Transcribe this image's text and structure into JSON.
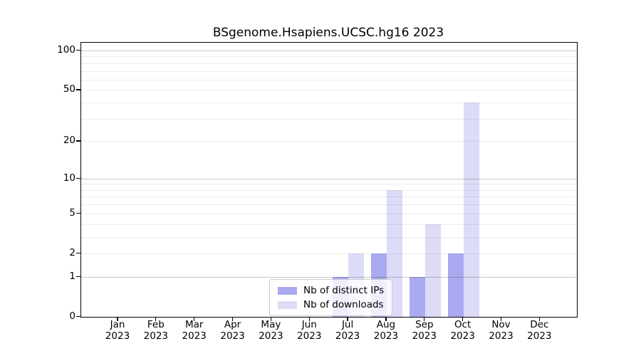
{
  "title": "BSgenome.Hsapiens.UCSC.hg16 2023",
  "legend": {
    "items": [
      {
        "label": "Nb of distinct IPs",
        "color": "#aaaaf0"
      },
      {
        "label": "Nb of downloads",
        "color": "#dcdcf8"
      }
    ]
  },
  "colors": {
    "distinct_ips_bar": "#aaaaf0",
    "downloads_bar": "#dcdcf8",
    "axis_frame": "#000000",
    "legend_border": "#cccccc"
  },
  "chart_data": {
    "type": "bar",
    "title": "BSgenome.Hsapiens.UCSC.hg16 2023",
    "categories": [
      "Jan 2023",
      "Feb 2023",
      "Mar 2023",
      "Apr 2023",
      "May 2023",
      "Jun 2023",
      "Jul 2023",
      "Aug 2023",
      "Sep 2023",
      "Oct 2023",
      "Nov 2023",
      "Dec 2023"
    ],
    "month_labels": [
      "Jan",
      "Feb",
      "Mar",
      "Apr",
      "May",
      "Jun",
      "Jul",
      "Aug",
      "Sep",
      "Oct",
      "Nov",
      "Dec"
    ],
    "year_label": "2023",
    "series": [
      {
        "name": "Nb of distinct IPs",
        "color": "#aaaaf0",
        "values": [
          0,
          0,
          0,
          0,
          0,
          0,
          1,
          2,
          1,
          2,
          0,
          0
        ]
      },
      {
        "name": "Nb of downloads",
        "color": "#dcdcf8",
        "values": [
          0,
          0,
          0,
          0,
          0,
          0,
          2,
          8,
          4,
          40,
          0,
          0
        ]
      }
    ],
    "yscale": "log1p",
    "ylim": [
      0,
      115
    ],
    "yticks": [
      0,
      1,
      2,
      5,
      10,
      20,
      50,
      100
    ],
    "major_gridlines": [
      1,
      10,
      100
    ],
    "minor_gridlines": [
      2,
      3,
      4,
      5,
      6,
      7,
      8,
      9,
      20,
      30,
      40,
      50,
      60,
      70,
      80,
      90
    ],
    "grid": true,
    "legend_position": "lower center"
  }
}
